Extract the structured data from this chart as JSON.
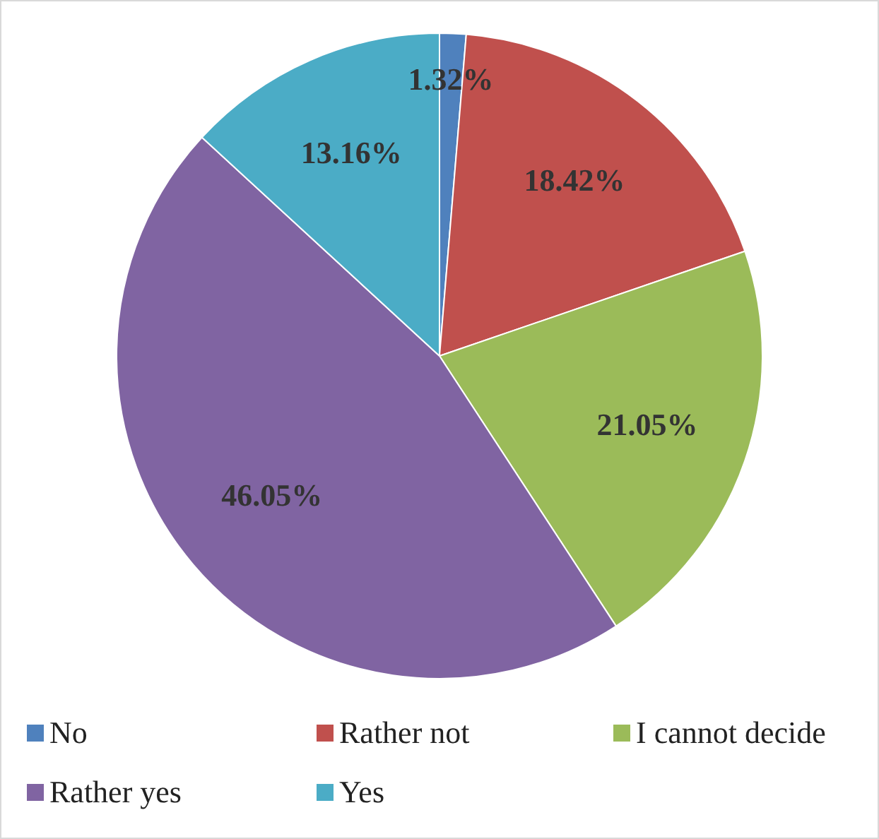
{
  "chart_data": {
    "type": "pie",
    "categories": [
      "No",
      "Rather not",
      "I cannot decide",
      "Rather yes",
      "Yes"
    ],
    "values": [
      1.32,
      18.42,
      21.05,
      46.05,
      13.16
    ],
    "colors": [
      "#4f81bd",
      "#c0504d",
      "#9bbb59",
      "#8064a2",
      "#4bacc6"
    ],
    "value_labels": [
      "1.32%",
      "18.42%",
      "21.05%",
      "46.05%",
      "13.16%"
    ],
    "legend": "bottom"
  }
}
